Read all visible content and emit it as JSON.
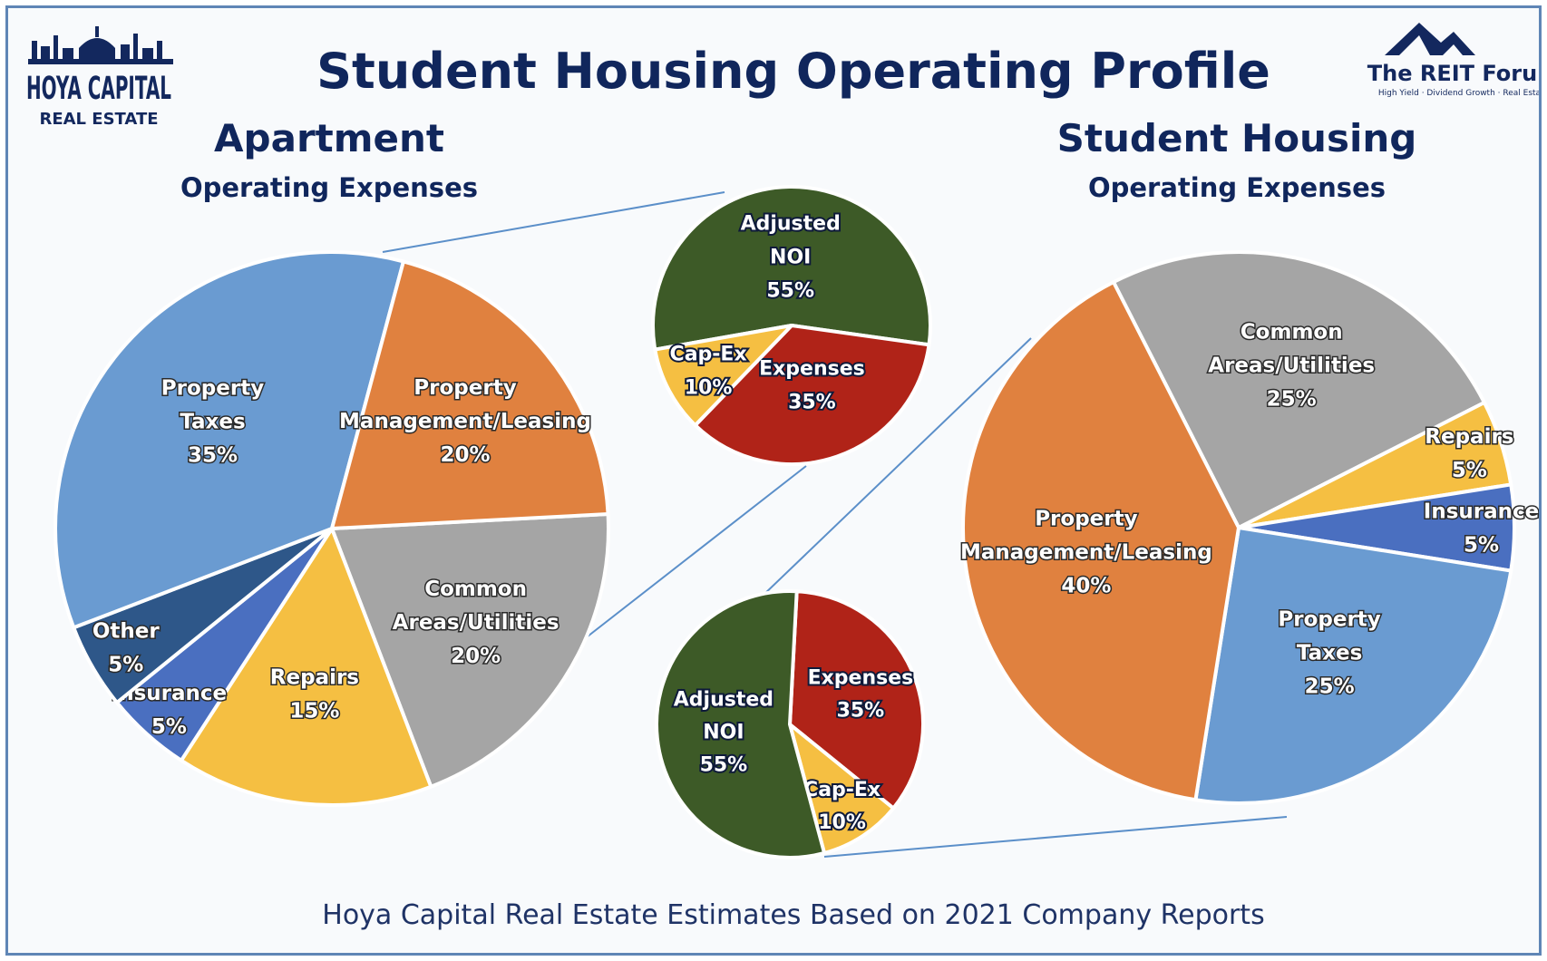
{
  "header": {
    "title": "Student Housing Operating Profile",
    "source_note": "Hoya Capital Real Estate Estimates Based on 2021 Company Reports"
  },
  "logos": {
    "left_line1": "HOYA CAPITAL",
    "left_line2": "REAL ESTATE",
    "right_name": "The REIT Forum",
    "right_tagline": "High Yield · Dividend Growth · Real Estate"
  },
  "colors": {
    "common": "#a5a5a5",
    "repairs": "#f5bf42",
    "insurance": "#4a6fc0",
    "other": "#2e5789",
    "taxes": "#6a9bd1",
    "management": "#e0813f",
    "noi": "#3d5a27",
    "expenses": "#b02318",
    "capex": "#f5bf42",
    "title": "#10265c",
    "connector": "#5b8fc9"
  },
  "chart_data": [
    {
      "type": "pie",
      "title": "Apartment",
      "subtitle": "Operating Expenses",
      "slices": [
        {
          "key": "common",
          "label": [
            "Common",
            "Areas/Utilities",
            "20%"
          ],
          "value": 20
        },
        {
          "key": "repairs",
          "label": [
            "Repairs",
            "15%"
          ],
          "value": 15
        },
        {
          "key": "insurance",
          "label": [
            "Insurance",
            "5%"
          ],
          "value": 5
        },
        {
          "key": "other",
          "label": [
            "Other",
            "5%"
          ],
          "value": 5
        },
        {
          "key": "taxes",
          "label": [
            "Property",
            "Taxes",
            "35%"
          ],
          "value": 35
        },
        {
          "key": "management",
          "label": [
            "Property",
            "Management/Leasing",
            "20%"
          ],
          "value": 20
        }
      ]
    },
    {
      "type": "pie",
      "title": "",
      "slices": [
        {
          "key": "noi",
          "label": [
            "Adjusted",
            "NOI",
            "55%"
          ],
          "value": 55
        },
        {
          "key": "expenses",
          "label": [
            "Expenses",
            "35%"
          ],
          "value": 35
        },
        {
          "key": "capex",
          "label": [
            "Cap-Ex",
            "10%"
          ],
          "value": 10
        }
      ]
    },
    {
      "type": "pie",
      "title": "",
      "slices": [
        {
          "key": "expenses",
          "label": [
            "Expenses",
            "35%"
          ],
          "value": 35
        },
        {
          "key": "capex",
          "label": [
            "Cap-Ex",
            "10%"
          ],
          "value": 10
        },
        {
          "key": "noi",
          "label": [
            "Adjusted",
            "NOI",
            "55%"
          ],
          "value": 55
        }
      ]
    },
    {
      "type": "pie",
      "title": "Student Housing",
      "subtitle": "Operating Expenses",
      "slices": [
        {
          "key": "common",
          "label": [
            "Common",
            "Areas/Utilities",
            "25%"
          ],
          "value": 25
        },
        {
          "key": "repairs",
          "label": [
            "Repairs",
            "5%"
          ],
          "value": 5
        },
        {
          "key": "insurance",
          "label": [
            "Insurance",
            "5%"
          ],
          "value": 5
        },
        {
          "key": "taxes",
          "label": [
            "Property",
            "Taxes",
            "25%"
          ],
          "value": 25
        },
        {
          "key": "management",
          "label": [
            "Property",
            "Management/Leasing",
            "40%"
          ],
          "value": 40
        }
      ]
    }
  ]
}
